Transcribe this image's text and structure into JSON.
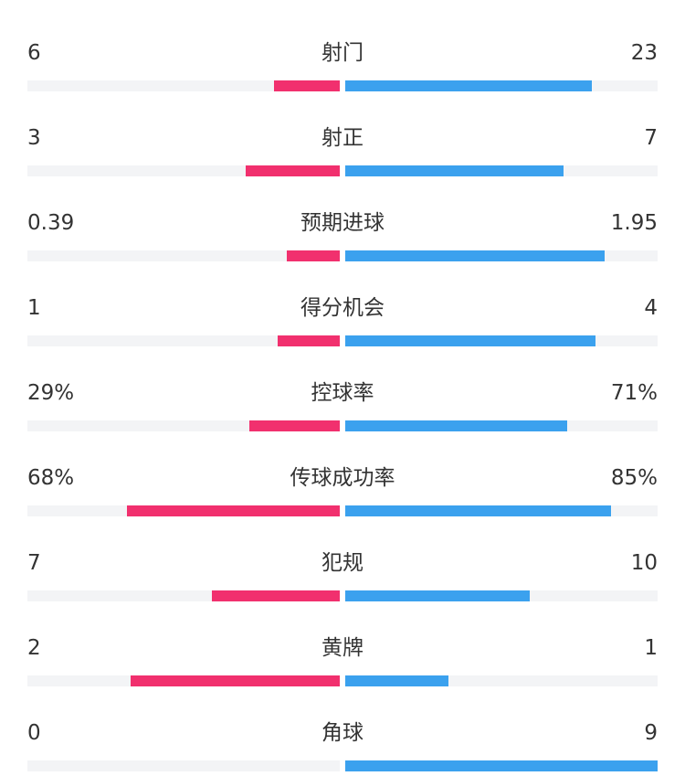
{
  "colors": {
    "home": "#f1306e",
    "away": "#3ba1ee",
    "track": "#f3f4f6",
    "text": "#333333"
  },
  "stats": [
    {
      "label": "射门",
      "home": "6",
      "away": "23",
      "home_ratio": 0.21,
      "away_ratio": 0.79
    },
    {
      "label": "射正",
      "home": "3",
      "away": "7",
      "home_ratio": 0.3,
      "away_ratio": 0.7
    },
    {
      "label": "预期进球",
      "home": "0.39",
      "away": "1.95",
      "home_ratio": 0.17,
      "away_ratio": 0.83
    },
    {
      "label": "得分机会",
      "home": "1",
      "away": "4",
      "home_ratio": 0.2,
      "away_ratio": 0.8
    },
    {
      "label": "控球率",
      "home": "29%",
      "away": "71%",
      "home_ratio": 0.29,
      "away_ratio": 0.71
    },
    {
      "label": "传球成功率",
      "home": "68%",
      "away": "85%",
      "home_ratio": 0.68,
      "away_ratio": 0.85
    },
    {
      "label": "犯规",
      "home": "7",
      "away": "10",
      "home_ratio": 0.41,
      "away_ratio": 0.59
    },
    {
      "label": "黄牌",
      "home": "2",
      "away": "1",
      "home_ratio": 0.67,
      "away_ratio": 0.33
    },
    {
      "label": "角球",
      "home": "0",
      "away": "9",
      "home_ratio": 0.0,
      "away_ratio": 1.0
    }
  ]
}
